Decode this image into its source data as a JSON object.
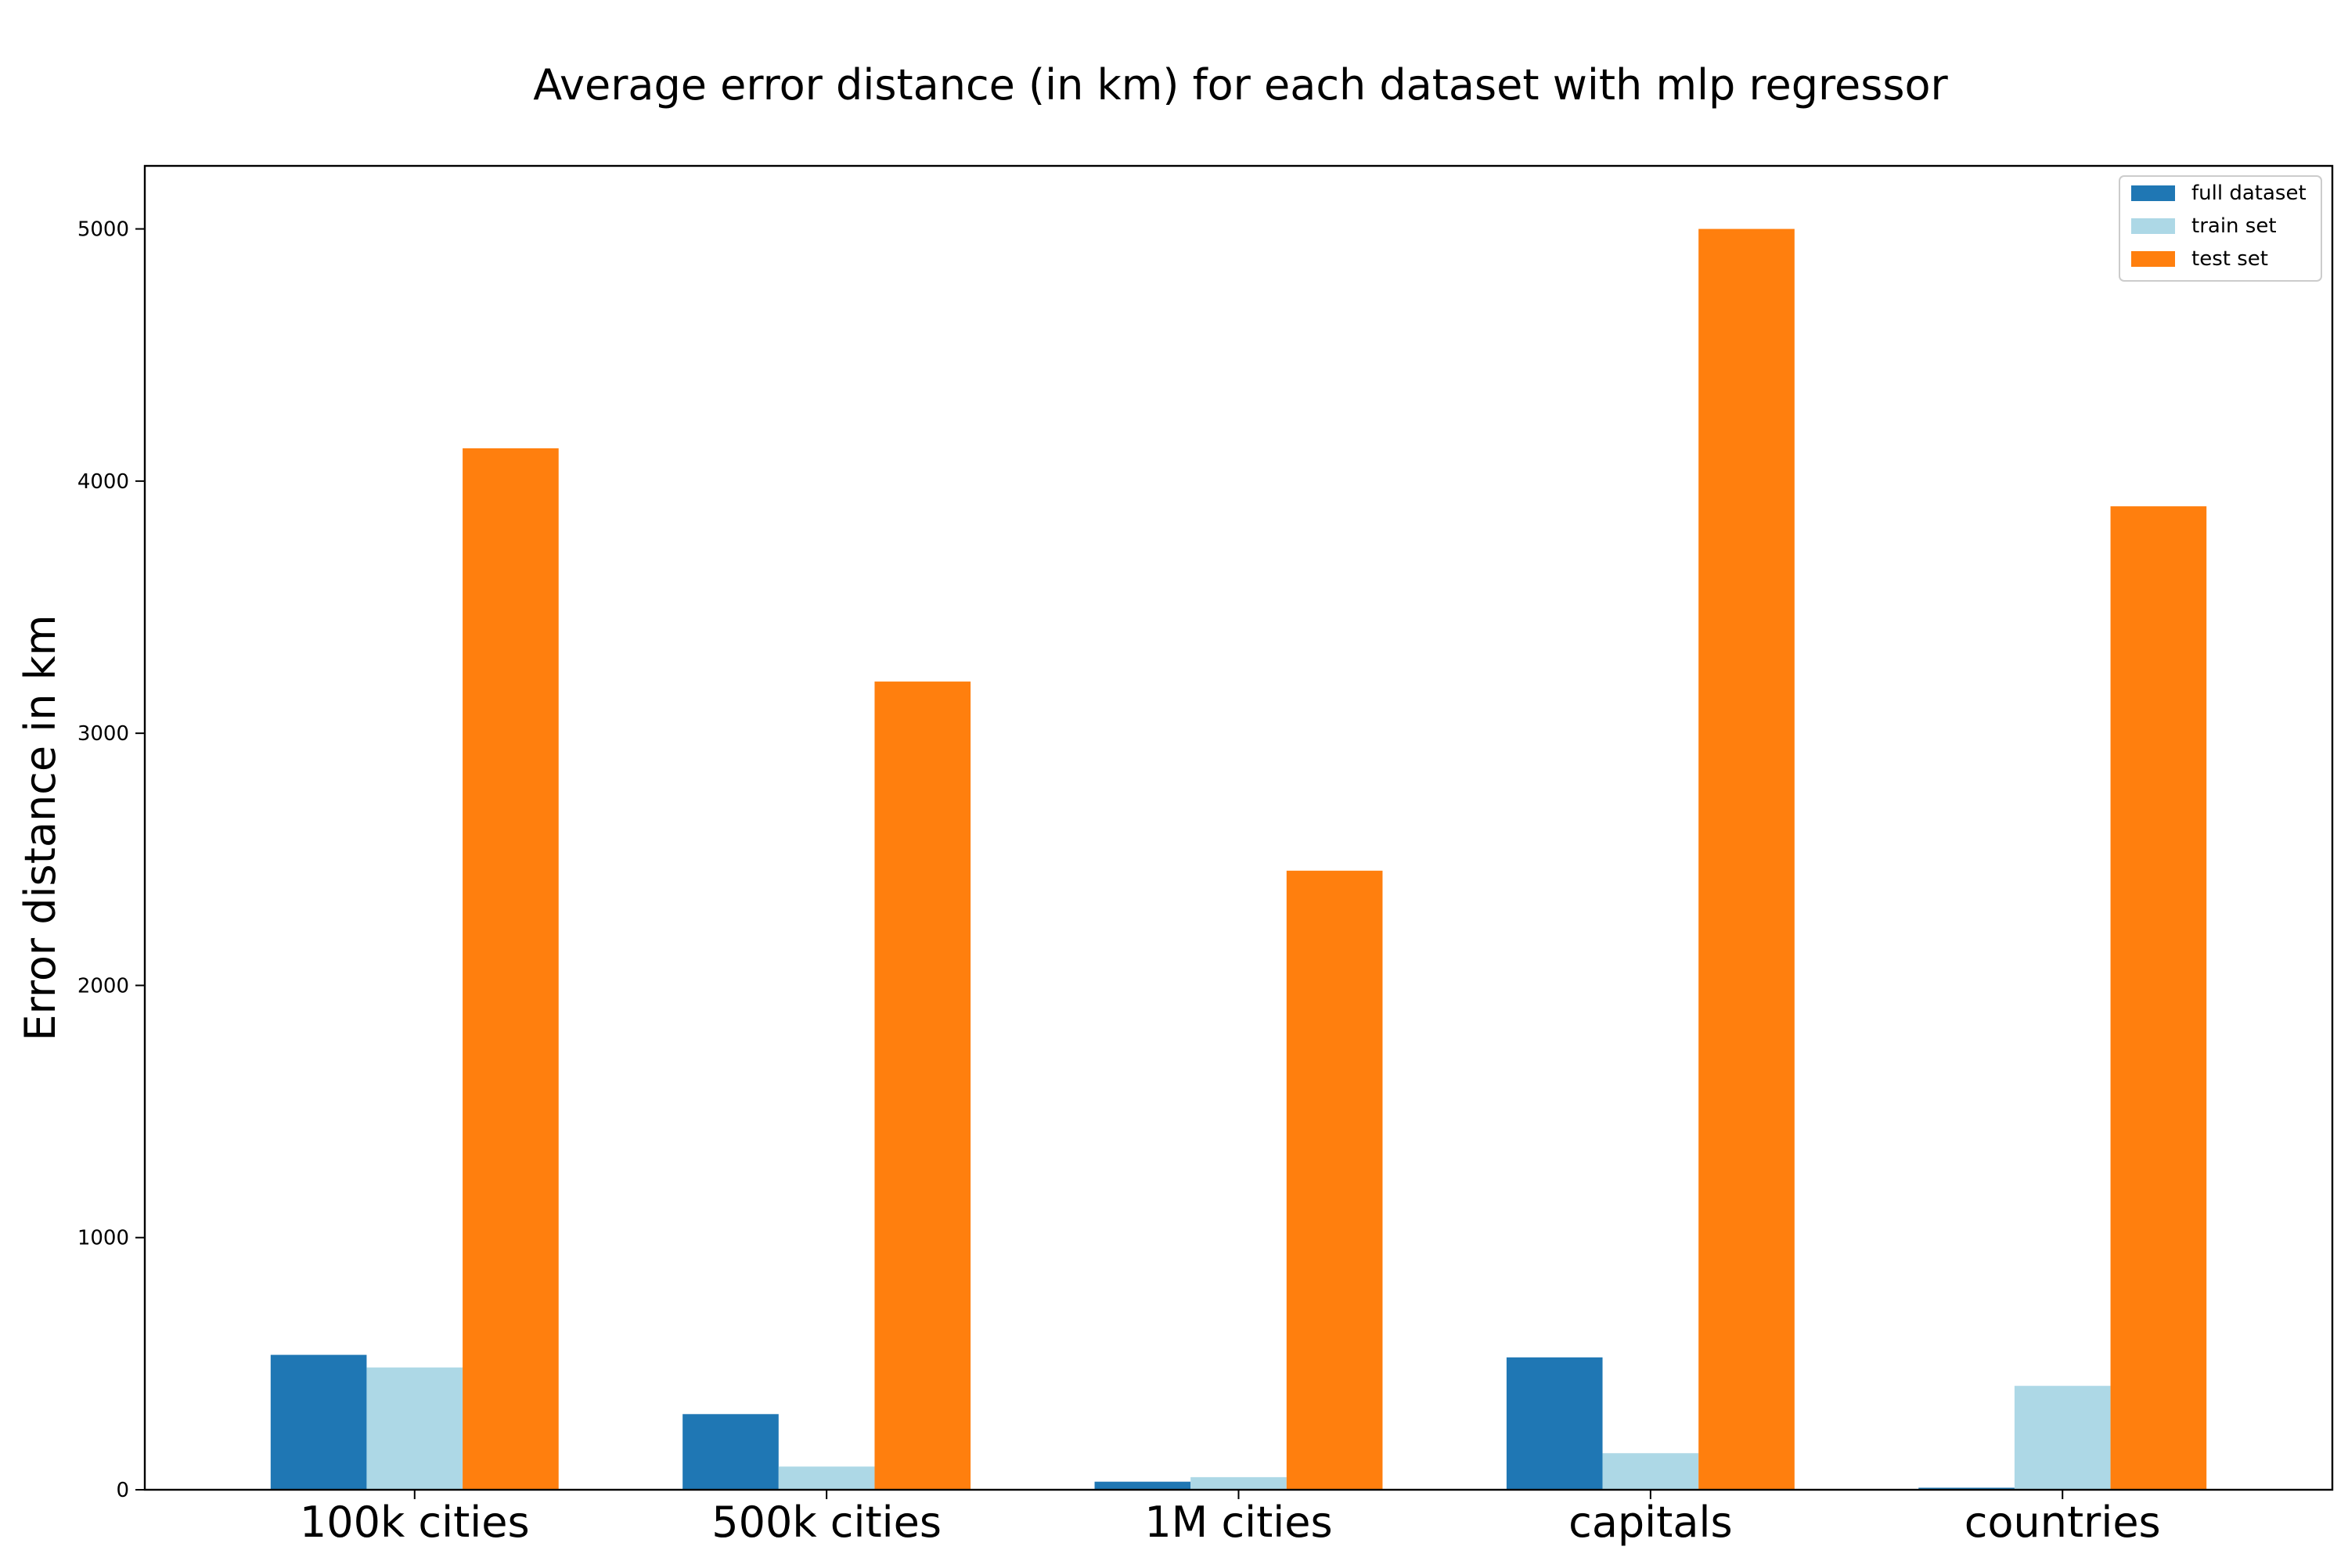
{
  "chart_data": {
    "type": "bar",
    "title": "Average error distance (in km) for each dataset with mlp regressor",
    "xlabel": "",
    "ylabel": "Error distance in km",
    "categories": [
      "100k cities",
      "500k cities",
      "1M cities",
      "capitals",
      "countries"
    ],
    "series": [
      {
        "name": "full dataset",
        "color": "#1f77b4",
        "values": [
          535,
          300,
          32,
          525,
          8
        ]
      },
      {
        "name": "train set",
        "color": "#add8e6",
        "values": [
          485,
          92,
          50,
          145,
          412
        ]
      },
      {
        "name": "test set",
        "color": "#ff7f0e",
        "values": [
          4130,
          3205,
          2455,
          5000,
          3900
        ]
      }
    ],
    "ylim": [
      0,
      5250
    ],
    "yticks": [
      0,
      1000,
      2000,
      3000,
      4000,
      5000
    ],
    "legend_position": "top-right",
    "grid": false
  }
}
